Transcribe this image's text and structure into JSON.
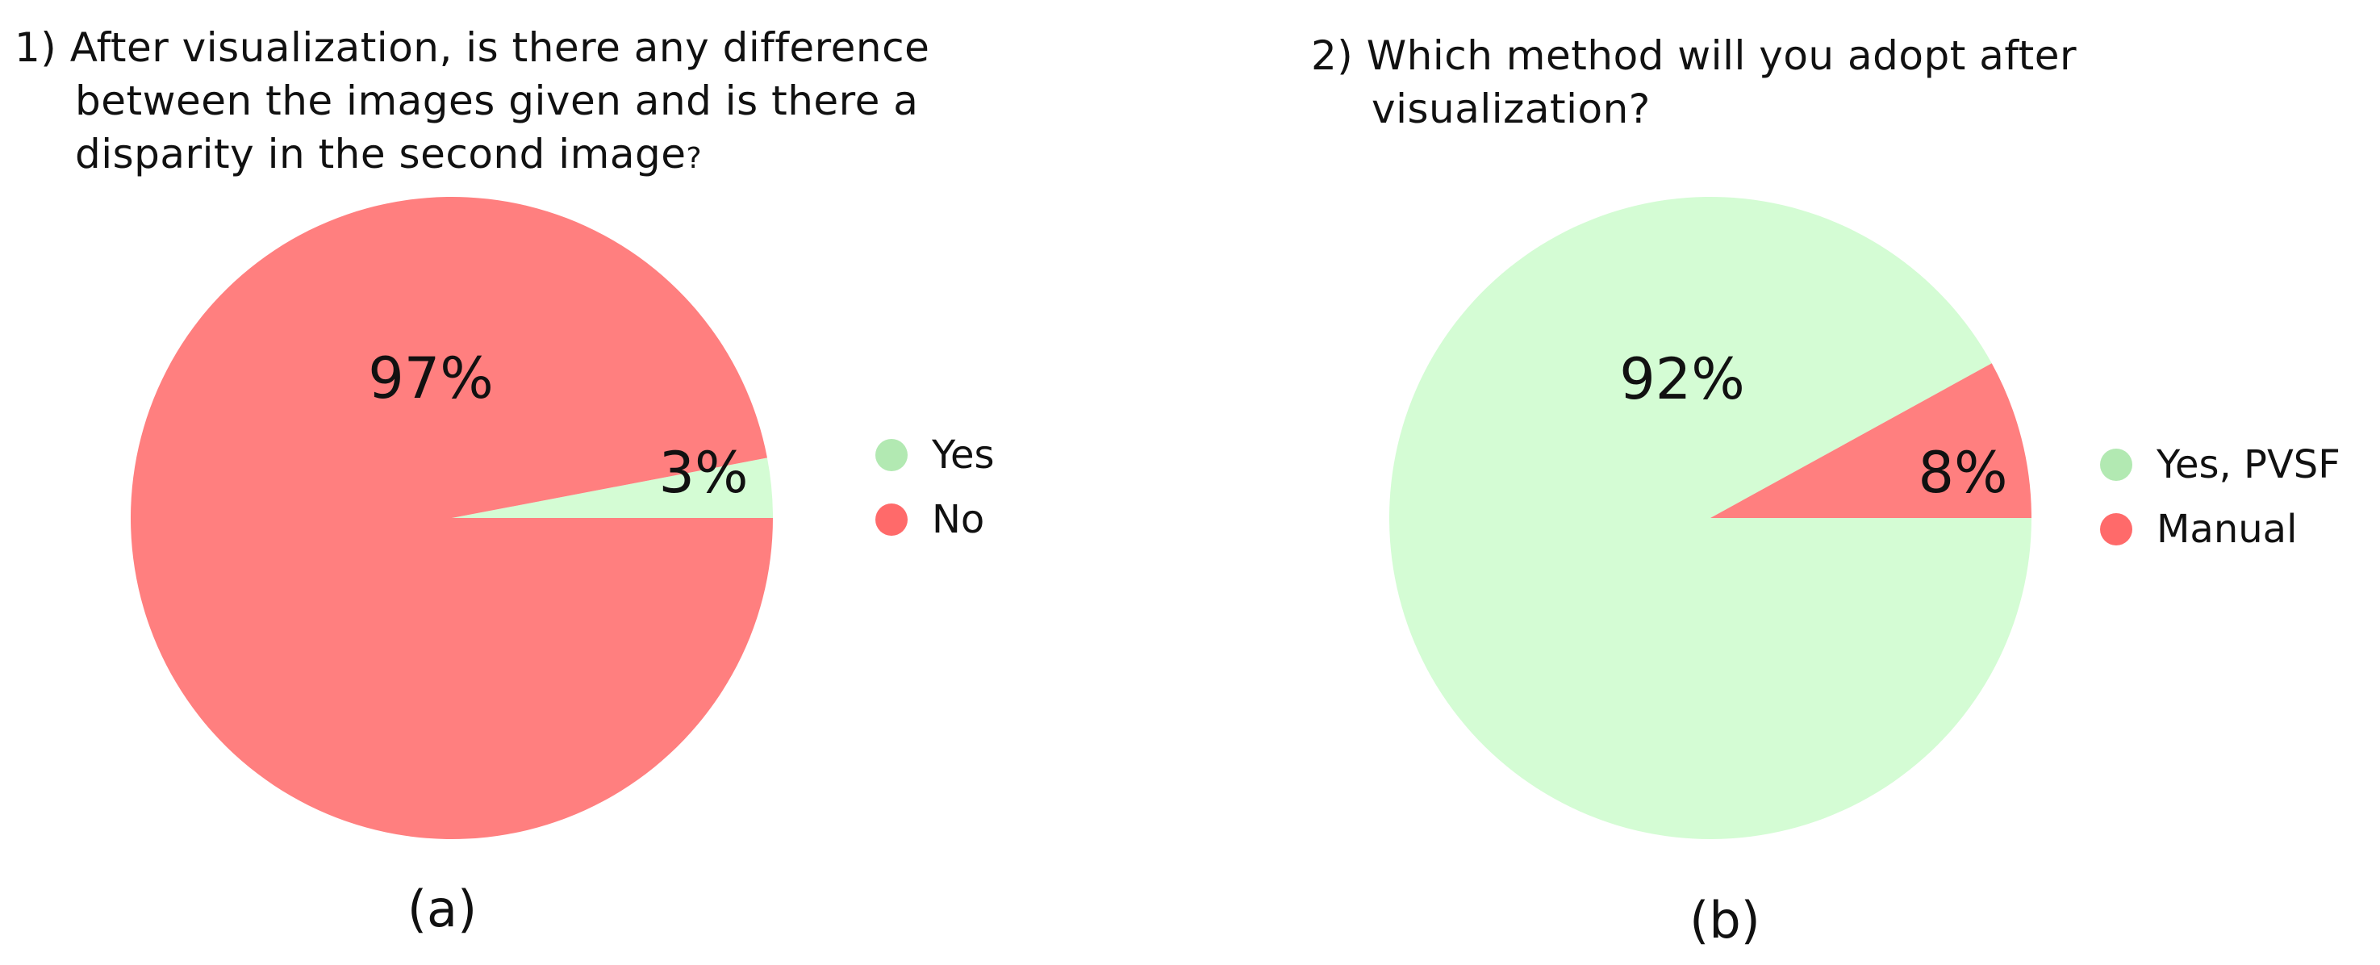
{
  "chart_data": [
    {
      "type": "pie",
      "panel": "(a)",
      "title_lines": [
        "1) After visualization, is there any difference",
        "between the images given and is there a",
        "disparity in the second image"
      ],
      "title_suffix": "?",
      "categories": [
        "Yes",
        "No"
      ],
      "values": [
        3,
        97
      ],
      "value_labels": [
        "3%",
        "97%"
      ],
      "colors": [
        "#d4fcd4",
        "#ff7f7f"
      ],
      "legend_colors": [
        "#b2e9b2",
        "#ff6a6a"
      ],
      "legend_placement": "right"
    },
    {
      "type": "pie",
      "panel": "(b)",
      "title_lines": [
        "2) Which method will you adopt after",
        "visualization?"
      ],
      "title_suffix": "",
      "categories": [
        "Yes, PVSF",
        "Manual"
      ],
      "values": [
        92,
        8
      ],
      "value_labels": [
        "92%",
        "8%"
      ],
      "colors": [
        "#d4fcd4",
        "#ff7f7f"
      ],
      "legend_colors": [
        "#b2e9b2",
        "#ff6a6a"
      ],
      "legend_placement": "right"
    }
  ]
}
